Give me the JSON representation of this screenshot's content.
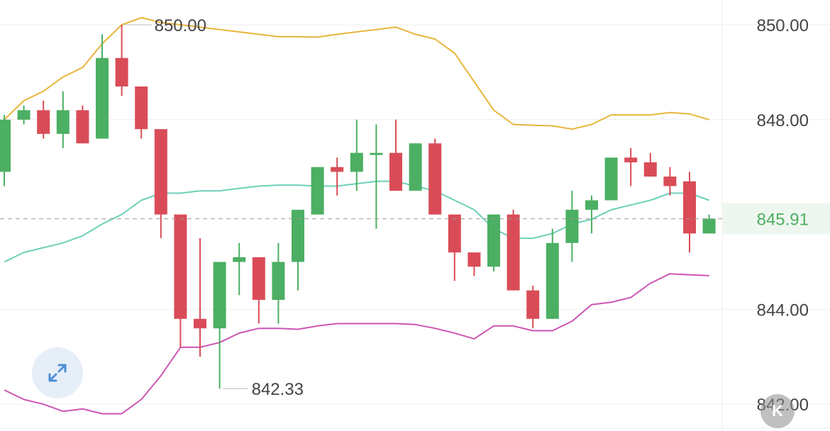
{
  "chart_data": {
    "type": "candlestick",
    "ylim": [
      841.7,
      850.5
    ],
    "yticks": [
      "850.00",
      "848.00",
      "844.00",
      "842.00"
    ],
    "ytick_values": [
      850,
      848,
      844,
      842
    ],
    "last_price_label": "845.91",
    "last_price": 845.91,
    "high_annotation": "850.00",
    "high_value": 850.0,
    "low_annotation": "842.33",
    "low_value": 842.33,
    "colors": {
      "up": "#4caf63",
      "down": "#d94c57",
      "upper_band": "#e8b53c",
      "middle_band": "#6cd0b8",
      "lower_band": "#cc55b3",
      "grid": "#eeeeee",
      "dashed": "#999999",
      "last_price": "#4caf63"
    },
    "candles": [
      {
        "o": 846.9,
        "h": 848.1,
        "l": 846.6,
        "c": 848.0
      },
      {
        "o": 848.0,
        "h": 848.3,
        "l": 847.9,
        "c": 848.2
      },
      {
        "o": 848.2,
        "h": 848.4,
        "l": 847.6,
        "c": 847.7
      },
      {
        "o": 847.7,
        "h": 848.6,
        "l": 847.4,
        "c": 848.2
      },
      {
        "o": 848.2,
        "h": 848.3,
        "l": 847.5,
        "c": 847.5
      },
      {
        "o": 847.6,
        "h": 849.8,
        "l": 847.6,
        "c": 849.3
      },
      {
        "o": 849.3,
        "h": 850.0,
        "l": 848.5,
        "c": 848.7
      },
      {
        "o": 848.7,
        "h": 848.7,
        "l": 847.6,
        "c": 847.8
      },
      {
        "o": 847.8,
        "h": 847.8,
        "l": 845.5,
        "c": 846.0
      },
      {
        "o": 846.0,
        "h": 846.0,
        "l": 843.2,
        "c": 843.8
      },
      {
        "o": 843.8,
        "h": 845.5,
        "l": 843.0,
        "c": 843.6
      },
      {
        "o": 843.6,
        "h": 845.0,
        "l": 842.33,
        "c": 845.0
      },
      {
        "o": 845.0,
        "h": 845.4,
        "l": 844.3,
        "c": 845.1
      },
      {
        "o": 845.1,
        "h": 845.1,
        "l": 843.7,
        "c": 844.2
      },
      {
        "o": 844.2,
        "h": 845.4,
        "l": 843.7,
        "c": 845.0
      },
      {
        "o": 845.0,
        "h": 846.1,
        "l": 844.4,
        "c": 846.1
      },
      {
        "o": 846.0,
        "h": 847.0,
        "l": 846.0,
        "c": 847.0
      },
      {
        "o": 847.0,
        "h": 847.2,
        "l": 846.4,
        "c": 846.9
      },
      {
        "o": 846.9,
        "h": 848.0,
        "l": 846.5,
        "c": 847.3
      },
      {
        "o": 847.3,
        "h": 847.9,
        "l": 845.7,
        "c": 847.3
      },
      {
        "o": 847.3,
        "h": 848.0,
        "l": 846.5,
        "c": 846.5
      },
      {
        "o": 846.5,
        "h": 847.5,
        "l": 846.5,
        "c": 847.5
      },
      {
        "o": 847.5,
        "h": 847.6,
        "l": 846.0,
        "c": 846.0
      },
      {
        "o": 846.0,
        "h": 846.0,
        "l": 844.6,
        "c": 845.2
      },
      {
        "o": 845.2,
        "h": 845.2,
        "l": 844.7,
        "c": 844.9
      },
      {
        "o": 844.9,
        "h": 846.0,
        "l": 844.8,
        "c": 846.0
      },
      {
        "o": 846.0,
        "h": 846.1,
        "l": 844.4,
        "c": 844.4
      },
      {
        "o": 844.4,
        "h": 844.5,
        "l": 843.6,
        "c": 843.8
      },
      {
        "o": 843.8,
        "h": 845.7,
        "l": 843.8,
        "c": 845.4
      },
      {
        "o": 845.4,
        "h": 846.5,
        "l": 845.0,
        "c": 846.1
      },
      {
        "o": 846.1,
        "h": 846.4,
        "l": 845.6,
        "c": 846.3
      },
      {
        "o": 846.3,
        "h": 847.2,
        "l": 846.3,
        "c": 847.2
      },
      {
        "o": 847.2,
        "h": 847.4,
        "l": 846.6,
        "c": 847.1
      },
      {
        "o": 847.1,
        "h": 847.3,
        "l": 846.8,
        "c": 846.8
      },
      {
        "o": 846.8,
        "h": 847.0,
        "l": 846.4,
        "c": 846.6
      },
      {
        "o": 846.7,
        "h": 846.9,
        "l": 845.2,
        "c": 845.6
      },
      {
        "o": 845.6,
        "h": 846.0,
        "l": 845.6,
        "c": 845.91
      }
    ],
    "upper_band": [
      848.0,
      848.4,
      848.6,
      848.9,
      849.1,
      849.6,
      850.0,
      850.15,
      850.05,
      850.0,
      849.95,
      849.9,
      849.85,
      849.8,
      849.75,
      849.75,
      849.74,
      849.8,
      849.85,
      849.9,
      849.95,
      849.8,
      849.7,
      849.4,
      848.8,
      848.2,
      847.9,
      847.88,
      847.87,
      847.8,
      847.9,
      848.1,
      848.1,
      848.1,
      848.15,
      848.12,
      848.0
    ],
    "middle_band": [
      845.0,
      845.2,
      845.3,
      845.4,
      845.55,
      845.8,
      846.0,
      846.3,
      846.45,
      846.45,
      846.5,
      846.5,
      846.55,
      846.6,
      846.62,
      846.62,
      846.6,
      846.6,
      846.65,
      846.7,
      846.7,
      846.6,
      846.5,
      846.3,
      846.1,
      845.7,
      845.5,
      845.5,
      845.6,
      845.8,
      845.9,
      846.1,
      846.2,
      846.3,
      846.45,
      846.45,
      846.3
    ],
    "lower_band": [
      842.3,
      842.1,
      842.0,
      841.85,
      841.9,
      841.8,
      841.8,
      842.1,
      842.6,
      843.2,
      843.2,
      843.3,
      843.5,
      843.6,
      843.6,
      843.58,
      843.65,
      843.7,
      843.7,
      843.7,
      843.7,
      843.68,
      843.6,
      843.5,
      843.38,
      843.65,
      843.65,
      843.55,
      843.55,
      843.75,
      844.1,
      844.15,
      844.25,
      844.55,
      844.75,
      844.73,
      844.71
    ]
  },
  "controls": {
    "expand_icon": "expand-arrows-icon",
    "k_badge_label": "K"
  }
}
